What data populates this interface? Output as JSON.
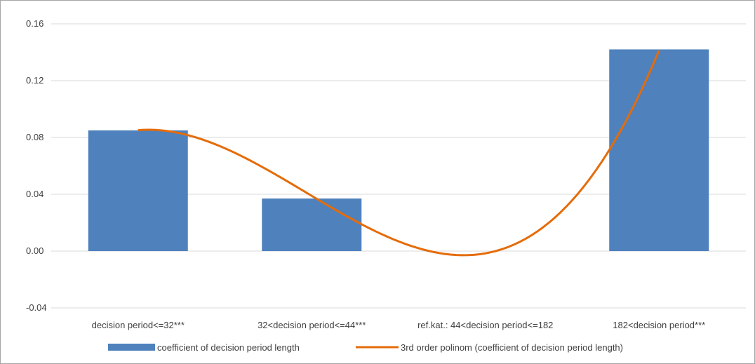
{
  "chart_data": {
    "type": "bar",
    "categories": [
      "decision period<=32***",
      "32<decision period<=44***",
      "ref.kat.: 44<decision period<=182",
      "182<decision period***"
    ],
    "series": [
      {
        "name": "coefficient of decision period length",
        "type": "bar",
        "values": [
          0.085,
          0.037,
          0,
          0.142
        ],
        "color": "#4f81bd"
      },
      {
        "name": "3rd order polinom (coefficient of decision period length)",
        "type": "line",
        "smooth": true,
        "values": [
          0.0851,
          0.0389,
          -0.0016,
          0.1412
        ],
        "color": "#e46c0a"
      }
    ],
    "ylim": [
      -0.04,
      0.16
    ],
    "yticks": [
      "-0.04",
      "0.00",
      "0.04",
      "0.08",
      "0.12",
      "0.16"
    ],
    "ytick_values": [
      -0.04,
      0,
      0.04,
      0.08,
      0.12,
      0.16
    ],
    "grid": true,
    "legend": "bottom"
  }
}
